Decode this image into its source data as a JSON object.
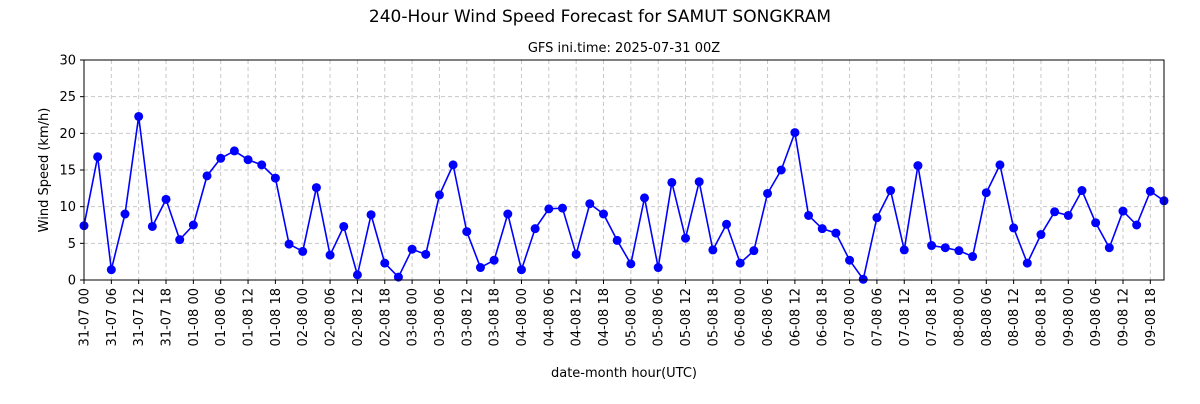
{
  "chart_data": {
    "type": "line",
    "title": "240-Hour Wind Speed Forecast for SAMUT SONGKRAM",
    "subtitle": "GFS ini.time: 2025-07-31 00Z",
    "xlabel": "date-month hour(UTC)",
    "ylabel": "Wind Speed (km/h)",
    "ylim": [
      0,
      30
    ],
    "yticks": [
      0,
      5,
      10,
      15,
      20,
      25,
      30
    ],
    "grid": true,
    "line_color": "#0000ff",
    "x_step_hours": 3,
    "x_tick_every": 2,
    "x_tick_labels": [
      "31-07 00",
      "31-07 06",
      "31-07 12",
      "31-07 18",
      "01-08 00",
      "01-08 06",
      "01-08 12",
      "01-08 18",
      "02-08 00",
      "02-08 06",
      "02-08 12",
      "02-08 18",
      "03-08 00",
      "03-08 06",
      "03-08 12",
      "03-08 18",
      "04-08 00",
      "04-08 06",
      "04-08 12",
      "04-08 18",
      "05-08 00",
      "05-08 06",
      "05-08 12",
      "05-08 18",
      "06-08 00",
      "06-08 06",
      "06-08 12",
      "06-08 18",
      "07-08 00",
      "07-08 06",
      "07-08 12",
      "07-08 18",
      "08-08 00",
      "08-08 06",
      "08-08 12",
      "08-08 18",
      "09-08 00",
      "09-08 06",
      "09-08 12",
      "09-08 18"
    ],
    "series": [
      {
        "values": [
          7.4,
          16.8,
          1.4,
          9.0,
          22.3,
          7.3,
          11.0,
          5.5,
          7.5,
          14.2,
          16.6,
          17.6,
          16.4,
          15.7,
          13.9,
          4.9,
          3.9,
          12.6,
          3.4,
          7.3,
          0.7,
          8.9,
          2.3,
          0.4,
          4.2,
          3.5,
          11.6,
          15.7,
          6.6,
          1.7,
          2.7,
          9.0,
          1.4,
          7.0,
          9.7,
          9.8,
          3.5,
          10.4,
          9.0,
          5.4,
          2.2,
          11.2,
          1.7,
          13.3,
          5.7,
          13.4,
          4.1,
          7.6,
          2.3,
          4.0,
          11.8,
          15.0,
          20.1,
          8.8,
          7.0,
          6.4,
          2.7,
          0.1,
          8.5,
          12.2,
          4.1,
          15.6,
          4.7,
          4.4,
          4.0,
          3.2,
          11.9,
          15.7,
          7.1,
          2.3,
          6.2,
          9.3,
          8.8,
          12.2,
          7.8,
          4.4,
          9.4,
          7.5,
          12.1,
          10.8
        ]
      }
    ]
  }
}
